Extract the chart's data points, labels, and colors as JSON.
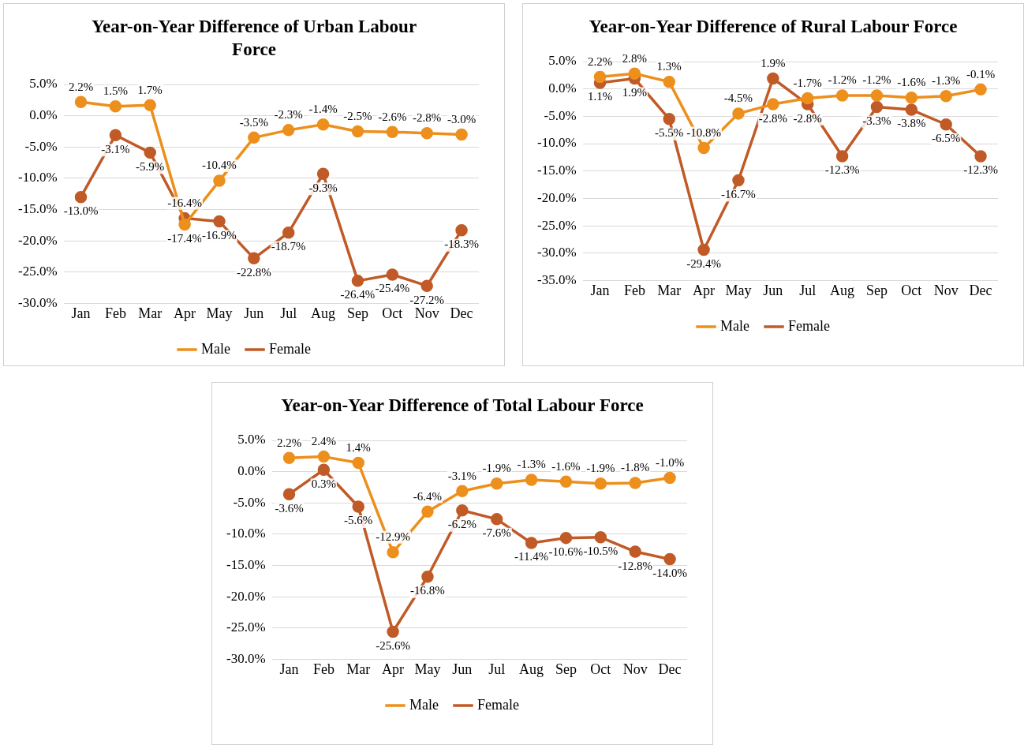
{
  "chart_data": [
    {
      "type": "line",
      "title": "Year-on-Year Difference of Urban Labour Force",
      "categories": [
        "Jan",
        "Feb",
        "Mar",
        "Apr",
        "May",
        "Jun",
        "Jul",
        "Aug",
        "Sep",
        "Oct",
        "Nov",
        "Dec"
      ],
      "series": [
        {
          "name": "Male",
          "color": "#ed8f1c",
          "values": [
            2.2,
            1.5,
            1.7,
            -17.4,
            -10.4,
            -3.5,
            -2.3,
            -1.4,
            -2.5,
            -2.6,
            -2.8,
            -3.0
          ],
          "value_labels": [
            "2.2%",
            "1.5%",
            "1.7%",
            "-17.4%",
            "-10.4%",
            "-3.5%",
            "-2.3%",
            "-1.4%",
            "-2.5%",
            "-2.6%",
            "-2.8%",
            "-3.0%"
          ]
        },
        {
          "name": "Female",
          "color": "#c05a27",
          "values": [
            -13.0,
            -3.1,
            -5.9,
            -16.4,
            -16.9,
            -22.8,
            -18.7,
            -9.3,
            -26.4,
            -25.4,
            -27.2,
            -18.3
          ],
          "value_labels": [
            "-13.0%",
            "-3.1%",
            "-5.9%",
            "-16.4%",
            "-16.9%",
            "-22.8%",
            "-18.7%",
            "-9.3%",
            "-26.4%",
            "-25.4%",
            "-27.2%",
            "-18.3%"
          ]
        }
      ],
      "ylim": [
        -30,
        5
      ],
      "yticks": [
        {
          "value": 5,
          "label": "5.0%"
        },
        {
          "value": 0,
          "label": "0.0%"
        },
        {
          "value": -5,
          "label": "-5.0%"
        },
        {
          "value": -10,
          "label": "-10.0%"
        },
        {
          "value": -15,
          "label": "-15.0%"
        },
        {
          "value": -20,
          "label": "-20.0%"
        },
        {
          "value": -25,
          "label": "-25.0%"
        },
        {
          "value": -30,
          "label": "-30.0%"
        }
      ],
      "grid": "y",
      "legend": "bottom",
      "marker": "circle"
    },
    {
      "type": "line",
      "title": "Year-on-Year Difference of Rural Labour Force",
      "categories": [
        "Jan",
        "Feb",
        "Mar",
        "Apr",
        "May",
        "Jun",
        "Jul",
        "Aug",
        "Sep",
        "Oct",
        "Nov",
        "Dec"
      ],
      "series": [
        {
          "name": "Male",
          "color": "#ed8f1c",
          "values": [
            2.2,
            2.8,
            1.3,
            -10.8,
            -4.5,
            -2.8,
            -1.7,
            -1.2,
            -1.2,
            -1.6,
            -1.3,
            -0.1
          ],
          "value_labels": [
            "2.2%",
            "2.8%",
            "1.3%",
            "-10.8%",
            "-4.5%",
            "-2.8%",
            "-1.7%",
            "-1.2%",
            "-1.2%",
            "-1.6%",
            "-1.3%",
            "-0.1%"
          ]
        },
        {
          "name": "Female",
          "color": "#c05a27",
          "values": [
            1.1,
            1.9,
            -5.5,
            -29.4,
            -16.7,
            1.9,
            -2.8,
            -12.3,
            -3.3,
            -3.8,
            -6.5,
            -12.3
          ],
          "value_labels": [
            "1.1%",
            "1.9%",
            "-5.5%",
            "-29.4%",
            "-16.7%",
            "1.9%",
            "-2.8%",
            "-12.3%",
            "-3.3%",
            "-3.8%",
            "-6.5%",
            "-12.3%"
          ]
        }
      ],
      "ylim": [
        -35,
        5
      ],
      "yticks": [
        {
          "value": 5,
          "label": "5.0%"
        },
        {
          "value": 0,
          "label": "0.0%"
        },
        {
          "value": -5,
          "label": "-5.0%"
        },
        {
          "value": -10,
          "label": "-10.0%"
        },
        {
          "value": -15,
          "label": "-15.0%"
        },
        {
          "value": -20,
          "label": "-20.0%"
        },
        {
          "value": -25,
          "label": "-25.0%"
        },
        {
          "value": -30,
          "label": "-30.0%"
        },
        {
          "value": -35,
          "label": "-35.0%"
        }
      ],
      "grid": "y",
      "legend": "bottom",
      "marker": "circle"
    },
    {
      "type": "line",
      "title": "Year-on-Year Difference of Total Labour Force",
      "categories": [
        "Jan",
        "Feb",
        "Mar",
        "Apr",
        "May",
        "Jun",
        "Jul",
        "Aug",
        "Sep",
        "Oct",
        "Nov",
        "Dec"
      ],
      "series": [
        {
          "name": "Male",
          "color": "#ed8f1c",
          "values": [
            2.2,
            2.4,
            1.4,
            -12.9,
            -6.4,
            -3.1,
            -1.9,
            -1.3,
            -1.6,
            -1.9,
            -1.8,
            -1.0
          ],
          "value_labels": [
            "2.2%",
            "2.4%",
            "1.4%",
            "-12.9%",
            "-6.4%",
            "-3.1%",
            "-1.9%",
            "-1.3%",
            "-1.6%",
            "-1.9%",
            "-1.8%",
            "-1.0%"
          ]
        },
        {
          "name": "Female",
          "color": "#c05a27",
          "values": [
            -3.6,
            0.3,
            -5.6,
            -25.6,
            -16.8,
            -6.2,
            -7.6,
            -11.4,
            -10.6,
            -10.5,
            -12.8,
            -14.0
          ],
          "value_labels": [
            "-3.6%",
            "0.3%",
            "-5.6%",
            "-25.6%",
            "-16.8%",
            "-6.2%",
            "-7.6%",
            "-11.4%",
            "-10.6%",
            "-10.5%",
            "-12.8%",
            "-14.0%"
          ]
        }
      ],
      "ylim": [
        -30,
        5
      ],
      "yticks": [
        {
          "value": 5,
          "label": "5.0%"
        },
        {
          "value": 0,
          "label": "0.0%"
        },
        {
          "value": -5,
          "label": "-5.0%"
        },
        {
          "value": -10,
          "label": "-10.0%"
        },
        {
          "value": -15,
          "label": "-15.0%"
        },
        {
          "value": -20,
          "label": "-20.0%"
        },
        {
          "value": -25,
          "label": "-25.0%"
        },
        {
          "value": -30,
          "label": "-30.0%"
        }
      ],
      "grid": "y",
      "legend": "bottom",
      "marker": "circle"
    }
  ]
}
